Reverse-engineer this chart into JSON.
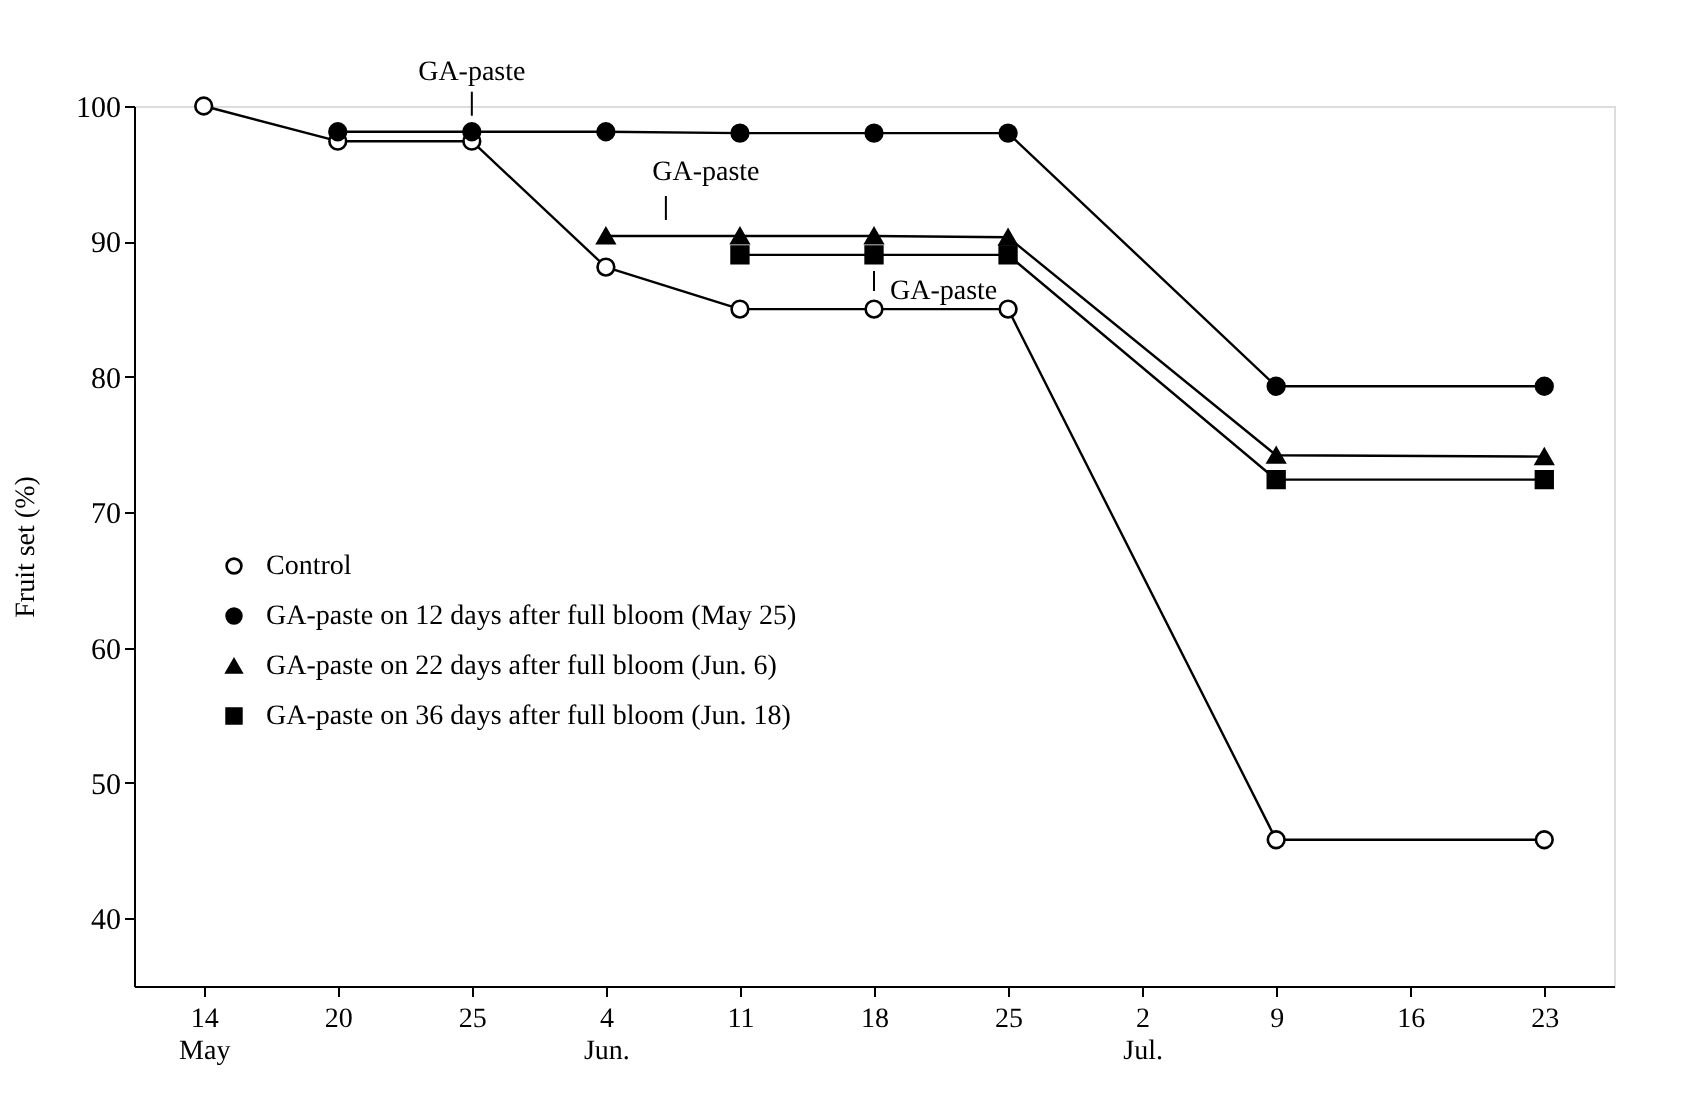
{
  "chart_data": {
    "type": "line",
    "ylabel": "Fruit set (%)",
    "categories": [
      "14\nMay",
      "20",
      "25",
      "4\nJun.",
      "11",
      "18",
      "25",
      "2\nJul.",
      "9",
      "16",
      "23"
    ],
    "ylim": [
      35,
      100
    ],
    "yticks": [
      40,
      50,
      60,
      70,
      80,
      90,
      100
    ],
    "grid": false,
    "legend": "left",
    "series": [
      {
        "name": "Control",
        "color": "#ffffff",
        "marker": "circle",
        "values": [
          100,
          97.4,
          97.4,
          88.1,
          85.0,
          85.0,
          85.0,
          null,
          45.8,
          null,
          45.8
        ]
      },
      {
        "name": "GA-paste on 12 days after full bloom (May 25)",
        "color": "#000000",
        "marker": "circle",
        "values": [
          null,
          98.1,
          98.1,
          98.1,
          98.0,
          98.0,
          98.0,
          null,
          79.3,
          null,
          79.3
        ]
      },
      {
        "name": "GA-paste on 22 days after full bloom (Jun. 6)",
        "color": "#000000",
        "marker": "triangle",
        "values": [
          null,
          null,
          null,
          90.4,
          90.4,
          90.4,
          90.3,
          null,
          74.2,
          null,
          74.1
        ]
      },
      {
        "name": "GA-paste on 36 days after full bloom (Jun. 18)",
        "color": "#000000",
        "marker": "square",
        "values": [
          null,
          null,
          null,
          null,
          89.0,
          89.0,
          89.0,
          null,
          72.4,
          null,
          72.4
        ]
      }
    ],
    "annotations": [
      {
        "text": "GA-paste",
        "x": "25",
        "y": 98.1
      },
      {
        "text": "GA-paste",
        "x": "4\nJun.",
        "y": 90.4
      },
      {
        "text": "GA-paste",
        "x": "18",
        "y": 89.0
      }
    ]
  }
}
